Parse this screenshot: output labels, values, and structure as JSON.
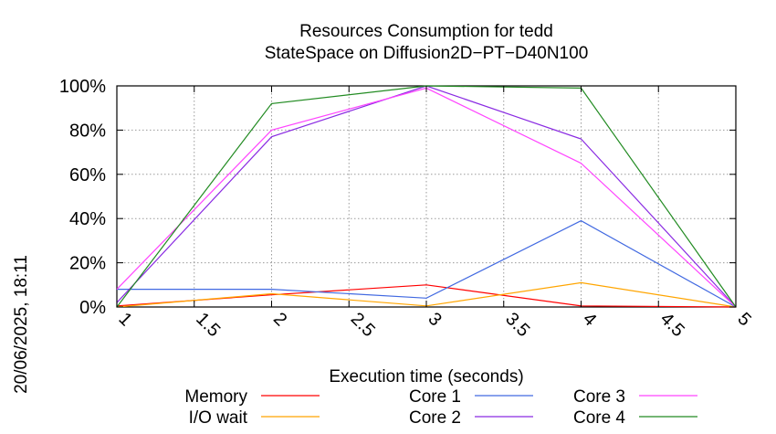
{
  "chart_data": {
    "type": "line",
    "title": "Resources Consumption for tedd",
    "subtitle": "StateSpace on Diffusion2D−PT−D40N100",
    "xlabel": "Execution time (seconds)",
    "ylabel": "",
    "side_label": "20/06/2025, 18:11",
    "xlim": [
      1,
      5
    ],
    "ylim": [
      0,
      100
    ],
    "x_ticks": [
      "1",
      "1.5",
      "2",
      "2.5",
      "3",
      "3.5",
      "4",
      "4.5",
      "5"
    ],
    "y_ticks": [
      "0%",
      "20%",
      "40%",
      "60%",
      "80%",
      "100%"
    ],
    "grid": true,
    "legend_position": "bottom",
    "x": [
      1,
      2,
      3,
      4,
      5
    ],
    "series": [
      {
        "name": "Memory",
        "color": "#ff0000",
        "values": [
          0.5,
          5.5,
          10,
          0.5,
          0
        ]
      },
      {
        "name": "I/O wait",
        "color": "#ffa500",
        "values": [
          0,
          6,
          0.5,
          11,
          0
        ]
      },
      {
        "name": "Core 1",
        "color": "#4169e1",
        "values": [
          8,
          8,
          4,
          39,
          0
        ]
      },
      {
        "name": "Core 2",
        "color": "#8a2be2",
        "values": [
          2,
          77,
          100,
          76,
          0
        ]
      },
      {
        "name": "Core 3",
        "color": "#ff44ff",
        "values": [
          8,
          80,
          99,
          65,
          0
        ]
      },
      {
        "name": "Core 4",
        "color": "#228b22",
        "values": [
          0,
          92,
          100,
          99,
          0
        ]
      }
    ]
  }
}
